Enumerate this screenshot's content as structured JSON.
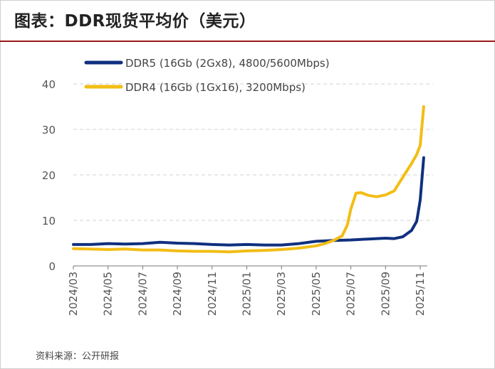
{
  "title": "图表：DDR现货平均价（美元）",
  "source": "资料来源：公开研报",
  "chart_data": {
    "type": "line",
    "title": "DDR现货平均价（美元）",
    "xlabel": "",
    "ylabel": "",
    "ylim": [
      0,
      40
    ],
    "yticks": [
      0,
      10,
      20,
      30,
      40
    ],
    "grid": true,
    "legend_position": "top-left",
    "x_tick_labels": [
      "2024/03",
      "2024/05",
      "2024/07",
      "2024/09",
      "2024/11",
      "2025/01",
      "2025/03",
      "2025/05",
      "2025/07",
      "2025/09",
      "2025/11"
    ],
    "series": [
      {
        "name": "DDR5 (16Gb (2Gx8), 4800/5600Mbps)",
        "color": "#10307f",
        "x": [
          0,
          1,
          2,
          3,
          4,
          5,
          6,
          7,
          8,
          9,
          10,
          11,
          12,
          13,
          14,
          15,
          16,
          17,
          17.5,
          18,
          18.5,
          19,
          19.5,
          19.8,
          20,
          20.2
        ],
        "values": [
          4.7,
          4.7,
          4.9,
          4.8,
          4.9,
          5.2,
          5.0,
          4.9,
          4.7,
          4.6,
          4.7,
          4.6,
          4.6,
          4.9,
          5.4,
          5.6,
          5.7,
          5.9,
          6.0,
          6.1,
          6.0,
          6.4,
          7.8,
          9.8,
          14.5,
          23.8
        ]
      },
      {
        "name": "DDR4 (16Gb (1Gx16), 3200Mbps)",
        "color": "#f2bd15",
        "x": [
          0,
          1,
          2,
          3,
          4,
          5,
          6,
          7,
          8,
          9,
          10,
          11,
          12,
          13,
          14,
          14.5,
          15,
          15.5,
          15.8,
          16,
          16.3,
          16.6,
          17,
          17.5,
          18,
          18.5,
          19,
          19.5,
          19.8,
          20,
          20.2
        ],
        "values": [
          3.8,
          3.7,
          3.6,
          3.7,
          3.5,
          3.5,
          3.3,
          3.2,
          3.2,
          3.1,
          3.3,
          3.4,
          3.6,
          3.9,
          4.4,
          4.9,
          5.6,
          6.6,
          9.0,
          12.5,
          16.0,
          16.1,
          15.5,
          15.2,
          15.6,
          16.5,
          19.5,
          22.5,
          24.5,
          26.5,
          35.0
        ]
      }
    ]
  }
}
